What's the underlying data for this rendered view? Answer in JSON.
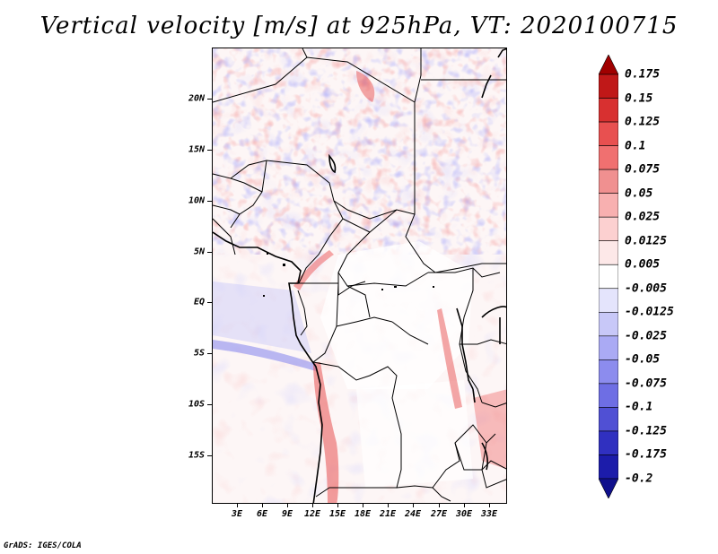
{
  "title": "Vertical velocity [m/s] at 925hPa, VT: 2020100715",
  "credit": "GrADS: IGES/COLA",
  "map": {
    "lat_labels": [
      "20N",
      "15N",
      "10N",
      "5N",
      "EQ",
      "5S",
      "10S",
      "15S"
    ],
    "lon_labels": [
      "3E",
      "6E",
      "9E",
      "12E",
      "15E",
      "18E",
      "21E",
      "24E",
      "27E",
      "30E",
      "33E"
    ]
  },
  "colorbar": {
    "labels": [
      "0.175",
      "0.15",
      "0.125",
      "0.1",
      "0.075",
      "0.05",
      "0.025",
      "0.0125",
      "0.005",
      "-0.005",
      "-0.0125",
      "-0.025",
      "-0.05",
      "-0.075",
      "-0.1",
      "-0.125",
      "-0.175",
      "-0.2"
    ],
    "colors": [
      "#a00000",
      "#c01818",
      "#d83030",
      "#e85050",
      "#f07070",
      "#f09090",
      "#f8b0b0",
      "#fcd0d0",
      "#fde8e8",
      "#ffffff",
      "#e4e4fc",
      "#c8c8f8",
      "#aaaaf4",
      "#8c8cee",
      "#6e6ee4",
      "#5050d4",
      "#3030c0",
      "#1c1caa",
      "#10108c"
    ]
  }
}
